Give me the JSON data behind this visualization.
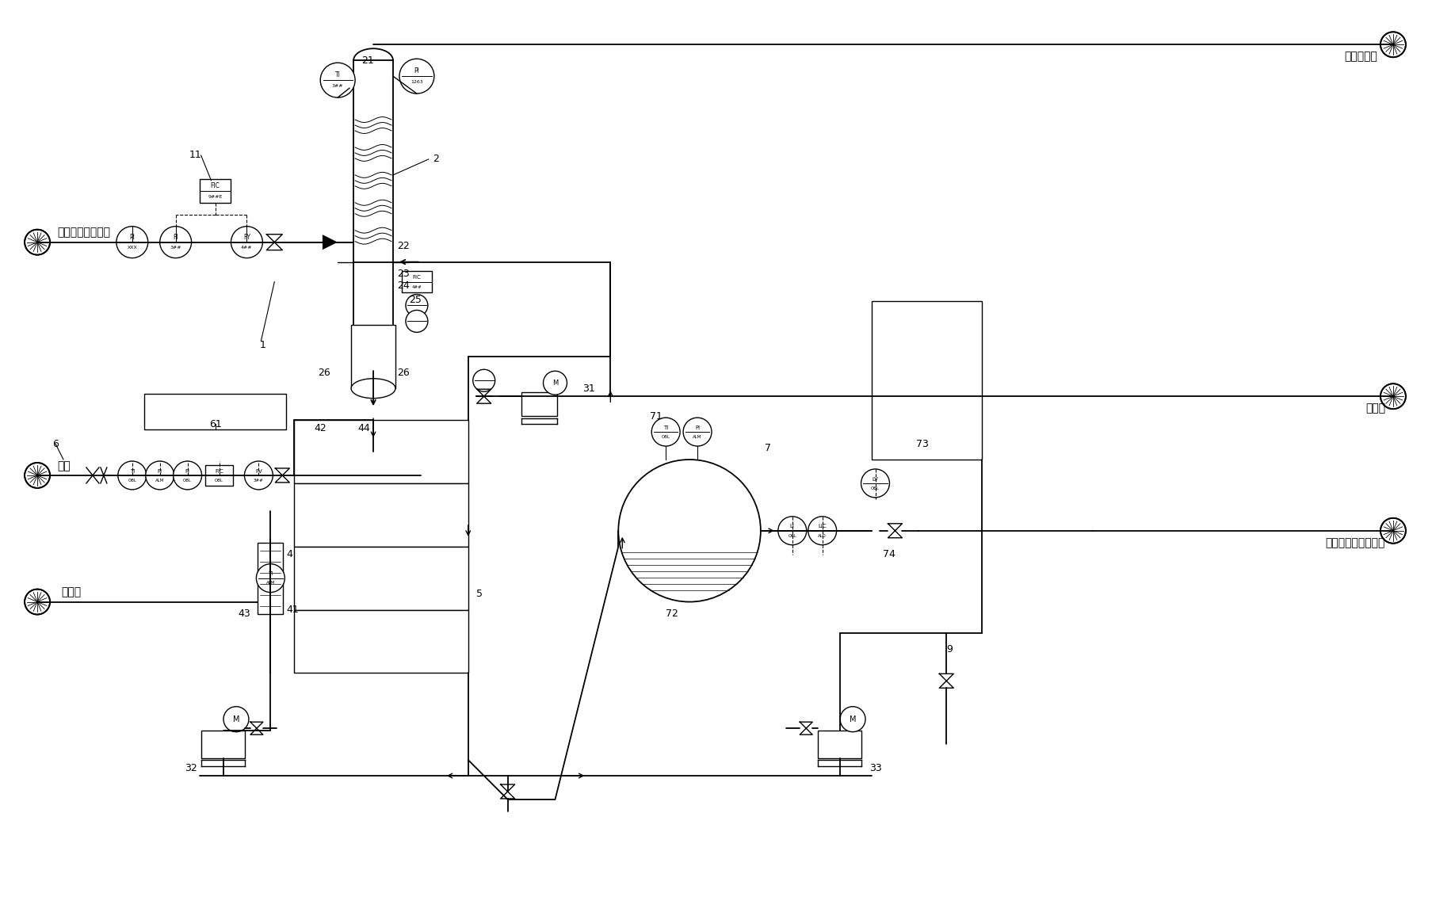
{
  "bg_color": "#ffffff",
  "lc": "#000000",
  "lw": 1.0,
  "lw_thick": 1.3,
  "labels": {
    "inlet_left": "邻氯甲苯及催化剂",
    "chlorine_inlet": "氯气",
    "heat_oil_left": "导热油",
    "heat_oil_right": "导热油",
    "tail_gas": "尾气去吸收",
    "product_out": "氯化液去三氯苄贮槽"
  }
}
